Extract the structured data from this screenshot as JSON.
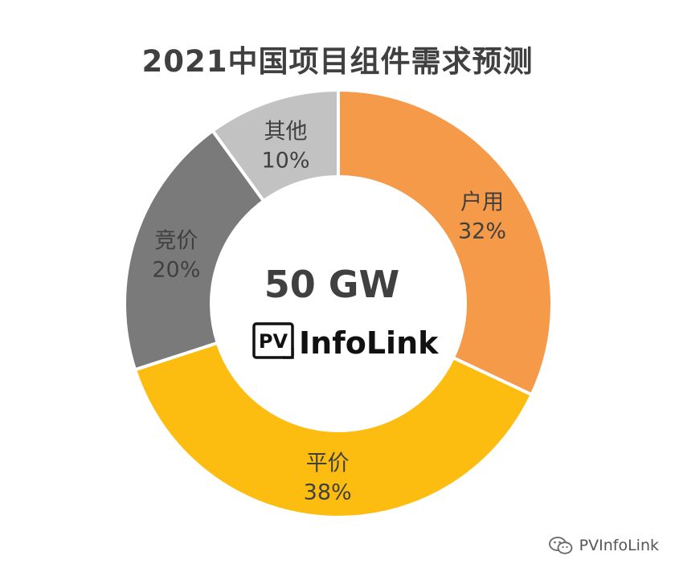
{
  "chart_data": {
    "type": "pie",
    "title": "2021中国项目组件需求预测",
    "center_value": "50 GW",
    "slices": [
      {
        "label": "户用",
        "value": 32,
        "value_label": "32%",
        "color": "#F59A49"
      },
      {
        "label": "平价",
        "value": 38,
        "value_label": "38%",
        "color": "#FDBD10"
      },
      {
        "label": "竞价",
        "value": 20,
        "value_label": "20%",
        "color": "#7A7A7A"
      },
      {
        "label": "其他",
        "value": 10,
        "value_label": "10%",
        "color": "#C2C2C2"
      }
    ],
    "start_angle_deg": 0,
    "direction": "clockwise",
    "legend": "none"
  },
  "logo": {
    "badge": "PV",
    "name": "InfoLink"
  },
  "watermark": {
    "icon": "wechat-icon",
    "text": "PVInfoLink"
  }
}
